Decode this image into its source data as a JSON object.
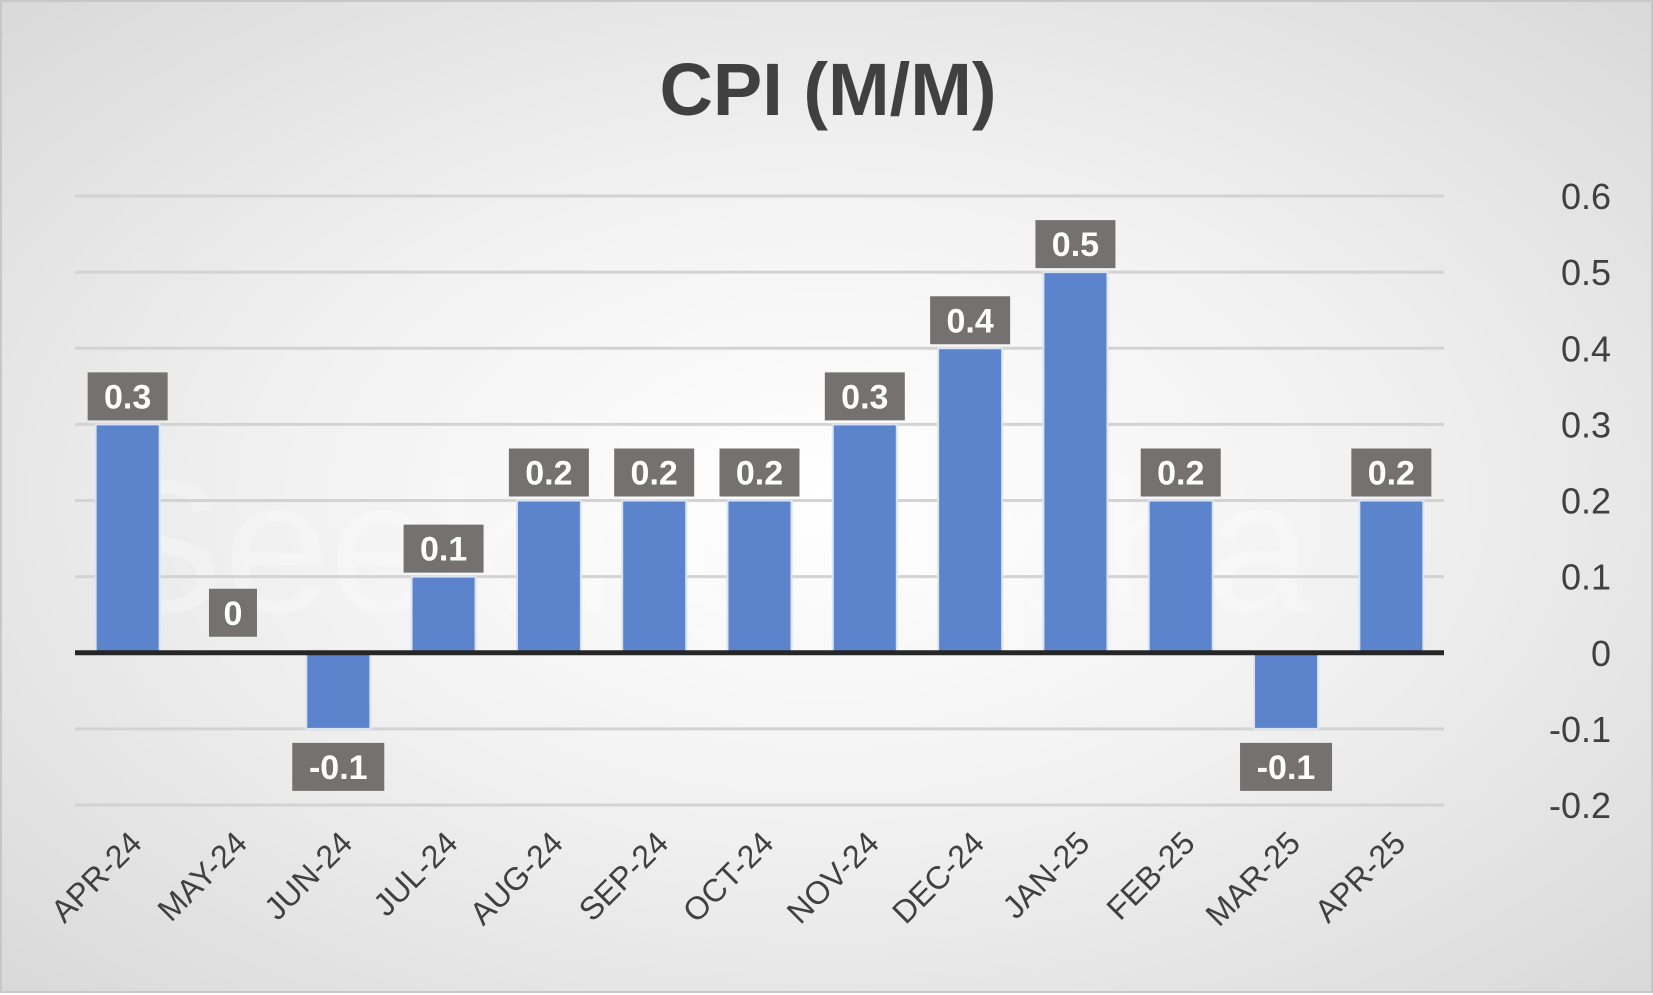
{
  "chart_data": {
    "type": "bar",
    "title": "CPI (M/M)",
    "xlabel": "",
    "ylabel": "",
    "categories": [
      "APR-24",
      "MAY-24",
      "JUN-24",
      "JUL-24",
      "AUG-24",
      "SEP-24",
      "OCT-24",
      "NOV-24",
      "DEC-24",
      "JAN-25",
      "FEB-25",
      "MAR-25",
      "APR-25"
    ],
    "series": [
      {
        "values": [
          0.3,
          0,
          -0.1,
          0.1,
          0.2,
          0.2,
          0.2,
          0.3,
          0.4,
          0.5,
          0.2,
          -0.1,
          0.2
        ]
      }
    ],
    "data_labels": [
      "0.3",
      "0",
      "-0.1",
      "0.1",
      "0.2",
      "0.2",
      "0.2",
      "0.3",
      "0.4",
      "0.5",
      "0.2",
      "-0.1",
      "0.2"
    ],
    "ylim": [
      -0.2,
      0.6
    ],
    "yticks": [
      -0.2,
      -0.1,
      0,
      0.1,
      0.2,
      0.3,
      0.4,
      0.5,
      0.6
    ],
    "ytick_labels": [
      "-0.2",
      "-0.1",
      "0",
      "0.1",
      "0.2",
      "0.3",
      "0.4",
      "0.5",
      "0.6"
    ],
    "y_axis_side": "right",
    "grid": true,
    "legend": "none",
    "watermark": "Seeking Alpha",
    "colors": {
      "bar": "#5b84cc",
      "bar_edge": "#dbe4f3",
      "label_box": "#757170",
      "label_text": "#ffffff",
      "title": "#404040",
      "ticks": "#404040",
      "grid": "#d3d3d3",
      "zero_line": "#262626"
    }
  }
}
